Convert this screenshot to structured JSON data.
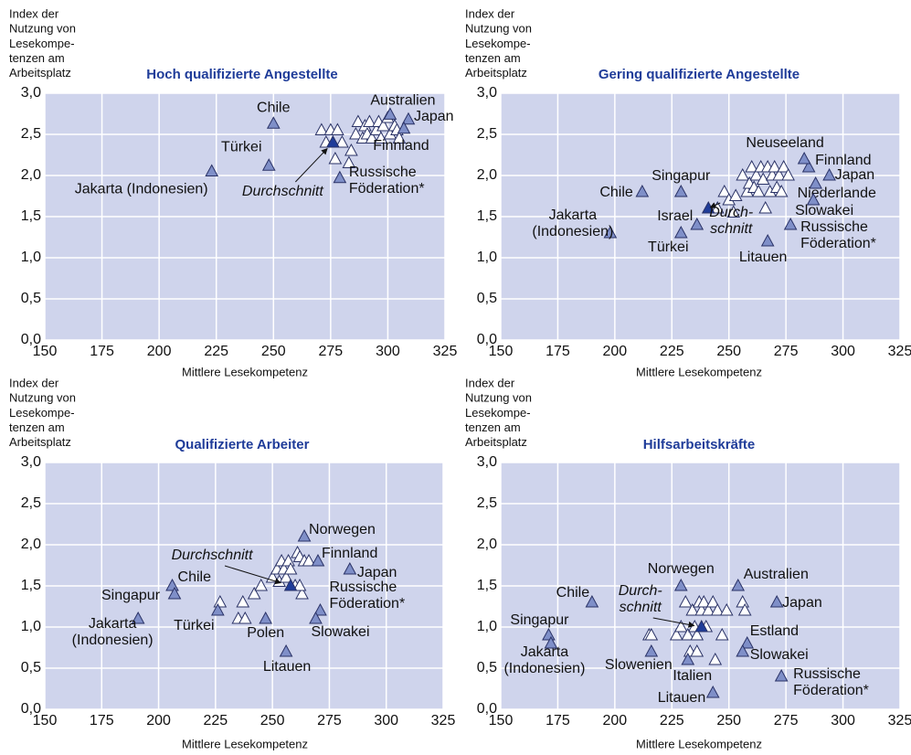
{
  "chart_data": [
    {
      "type": "scatter",
      "title": "Hoch qualifizierte Angestellte",
      "ylabel": [
        "Index der",
        "Nutzung von",
        "Lesekompe-",
        "tenzen am",
        "Arbeitsplatz"
      ],
      "xlabel": "Mittlere Lesekompetenz",
      "xlim": [
        150,
        325
      ],
      "xticks": [
        150,
        175,
        200,
        225,
        250,
        275,
        300,
        325
      ],
      "ylim": [
        0,
        3
      ],
      "yticks": [
        {
          "value": 0,
          "label": "0,0"
        },
        {
          "value": 0.5,
          "label": "0,5"
        },
        {
          "value": 1,
          "label": "1,0"
        },
        {
          "value": 1.5,
          "label": "1,5"
        },
        {
          "value": 2,
          "label": "2,0"
        },
        {
          "value": 2.5,
          "label": "2,5"
        },
        {
          "value": 3,
          "label": "3,0"
        }
      ],
      "grid": true,
      "series": [
        {
          "color": "#7f8fc8",
          "x": [
            250,
            248,
            223,
            301,
            309,
            307,
            279,
            276
          ],
          "values": [
            2.63,
            2.12,
            2.05,
            2.74,
            2.68,
            2.57,
            1.97,
            2.4
          ],
          "labels": [
            "Chile",
            "Türkei",
            "Jakarta (Indonesien)",
            "Australien",
            "Japan",
            "Finnland",
            [
              "Russische",
              "Föderation*"
            ]
          ]
        },
        {
          "color": "#ffffff",
          "x": [
            271,
            273,
            275,
            277,
            278,
            280,
            283,
            284,
            286,
            287,
            289,
            290,
            291,
            292,
            293,
            295,
            296,
            297,
            298,
            300,
            301,
            303,
            304,
            305
          ],
          "values": [
            2.55,
            2.4,
            2.55,
            2.2,
            2.55,
            2.4,
            2.15,
            2.3,
            2.5,
            2.65,
            2.45,
            2.6,
            2.5,
            2.65,
            2.45,
            2.55,
            2.65,
            2.45,
            2.6,
            2.7,
            2.5,
            2.6,
            2.55,
            2.45
          ]
        },
        {
          "color": "#1f3c99",
          "x": [
            276
          ],
          "values": [
            2.4
          ],
          "labels": [
            "Durchschnitt"
          ]
        }
      ]
    },
    {
      "type": "scatter",
      "title": "Gering qualifizierte Angestellte",
      "ylabel": [
        "Index der",
        "Nutzung von",
        "Lesekompe-",
        "tenzen am",
        "Arbeitsplatz"
      ],
      "xlabel": "Mittlere Lesekompetenz",
      "xlim": [
        150,
        325
      ],
      "xticks": [
        150,
        175,
        200,
        225,
        250,
        275,
        300,
        325
      ],
      "ylim": [
        0,
        3
      ],
      "yticks": [
        {
          "value": 0,
          "label": "0,0"
        },
        {
          "value": 0.5,
          "label": "0,5"
        },
        {
          "value": 1,
          "label": "1,0"
        },
        {
          "value": 1.5,
          "label": "1,5"
        },
        {
          "value": 2,
          "label": "2,0"
        },
        {
          "value": 2.5,
          "label": "2,5"
        },
        {
          "value": 3,
          "label": "3,0"
        }
      ],
      "grid": true,
      "series": [
        {
          "color": "#7f8fc8",
          "x": [
            285,
            294,
            283,
            288,
            287,
            277,
            267,
            229,
            212,
            236,
            229,
            198
          ],
          "values": [
            2.1,
            2.0,
            2.2,
            1.9,
            1.7,
            1.4,
            1.2,
            1.8,
            1.8,
            1.4,
            1.3,
            1.3
          ],
          "labels": [
            "Finnland",
            "Japan",
            "Neuseeland",
            "Niederlande",
            "Slowakei",
            [
              "Russische",
              "Föderation*"
            ],
            "Litauen",
            "Singapur",
            "Chile",
            "Israel",
            "Türkei",
            [
              "Jakarta",
              "(Indonesien)"
            ]
          ]
        },
        {
          "color": "#ffffff",
          "x": [
            245,
            248,
            250,
            252,
            253,
            256,
            258,
            259,
            260,
            261,
            262,
            263,
            264,
            265,
            266,
            267,
            268,
            269,
            270,
            271,
            272,
            273,
            274,
            276
          ],
          "values": [
            1.6,
            1.8,
            1.7,
            1.55,
            1.75,
            2.0,
            1.8,
            1.9,
            2.1,
            1.85,
            2.0,
            1.8,
            2.1,
            1.95,
            1.6,
            2.1,
            1.8,
            2.0,
            2.1,
            1.85,
            2.0,
            1.8,
            2.1,
            2.0
          ]
        },
        {
          "color": "#1f3c99",
          "x": [
            241
          ],
          "values": [
            1.6
          ],
          "labels": [
            [
              "Durch-",
              "schnitt"
            ]
          ]
        }
      ]
    },
    {
      "type": "scatter",
      "title": "Qualifizierte Arbeiter",
      "ylabel": [
        "Index der",
        "Nutzung von",
        "Lesekompe-",
        "tenzen am",
        "Arbeitsplatz"
      ],
      "xlabel": "Mittlere Lesekompetenz",
      "xlim": [
        150,
        325
      ],
      "xticks": [
        150,
        175,
        200,
        225,
        250,
        275,
        300,
        325
      ],
      "ylim": [
        0,
        3
      ],
      "yticks": [
        {
          "value": 0,
          "label": "0,0"
        },
        {
          "value": 0.5,
          "label": "0,5"
        },
        {
          "value": 1,
          "label": "1,0"
        },
        {
          "value": 1.5,
          "label": "1,5"
        },
        {
          "value": 2,
          "label": "2,0"
        },
        {
          "value": 2.5,
          "label": "2,5"
        },
        {
          "value": 3,
          "label": "3,0"
        }
      ],
      "grid": true,
      "series": [
        {
          "color": "#7f8fc8",
          "x": [
            264,
            270,
            284,
            271,
            269,
            247,
            256,
            206,
            207,
            191,
            226
          ],
          "values": [
            2.1,
            1.8,
            1.7,
            1.2,
            1.1,
            1.1,
            0.7,
            1.5,
            1.4,
            1.1,
            1.2
          ],
          "labels": [
            "Norwegen",
            "Finnland",
            "Japan",
            [
              "Russische",
              "Föderation*"
            ],
            "Slowakei",
            "Polen",
            "Litauen",
            "Chile",
            "Singapur",
            [
              "Jakarta",
              "(Indonesien)"
            ],
            "Türkei"
          ]
        },
        {
          "color": "#ffffff",
          "x": [
            227,
            235,
            237,
            238,
            242,
            245,
            250,
            252,
            253,
            254,
            255,
            256,
            257,
            258,
            260,
            261,
            262,
            263,
            264,
            266,
            262
          ],
          "values": [
            1.3,
            1.1,
            1.3,
            1.1,
            1.4,
            1.5,
            1.6,
            1.7,
            1.55,
            1.8,
            1.7,
            1.6,
            1.8,
            1.7,
            1.5,
            1.9,
            1.85,
            1.4,
            1.8,
            1.8,
            1.5
          ]
        },
        {
          "color": "#1f3c99",
          "x": [
            258
          ],
          "values": [
            1.5
          ],
          "labels": [
            "Durchschnitt"
          ]
        }
      ]
    },
    {
      "type": "scatter",
      "title": "Hilfsarbeitskräfte",
      "ylabel": [
        "Index der",
        "Nutzung von",
        "Lesekompe-",
        "tenzen am",
        "Arbeitsplatz"
      ],
      "xlabel": "Mittlere Lesekompetenz",
      "xlim": [
        150,
        325
      ],
      "xticks": [
        150,
        175,
        200,
        225,
        250,
        275,
        300,
        325
      ],
      "ylim": [
        0,
        3
      ],
      "yticks": [
        {
          "value": 0,
          "label": "0,0"
        },
        {
          "value": 0.5,
          "label": "0,5"
        },
        {
          "value": 1,
          "label": "1,0"
        },
        {
          "value": 1.5,
          "label": "1,5"
        },
        {
          "value": 2,
          "label": "2,0"
        },
        {
          "value": 2.5,
          "label": "2,5"
        },
        {
          "value": 3,
          "label": "3,0"
        }
      ],
      "grid": true,
      "series": [
        {
          "color": "#7f8fc8",
          "x": [
            190,
            171,
            172,
            229,
            254,
            271,
            258,
            256,
            273,
            243,
            216,
            232
          ],
          "values": [
            1.3,
            0.9,
            0.8,
            1.5,
            1.5,
            1.3,
            0.8,
            0.7,
            0.4,
            0.2,
            0.7,
            0.6
          ],
          "labels": [
            "Chile",
            "Singapur",
            [
              "Jakarta",
              "(Indonesien)"
            ],
            "Norwegen",
            "Australien",
            "Japan",
            "Estland",
            "Slowakei",
            [
              "Russische",
              "Föderation*"
            ],
            "Litauen",
            "Slowenien",
            "Italien"
          ]
        },
        {
          "color": "#ffffff",
          "x": [
            215,
            216,
            227,
            229,
            231,
            232,
            233,
            234,
            235,
            236,
            237,
            238,
            239,
            240,
            241,
            243,
            244,
            245,
            247,
            249,
            256,
            257,
            236
          ],
          "values": [
            0.9,
            0.9,
            0.9,
            1.0,
            1.3,
            0.9,
            0.7,
            1.2,
            1.0,
            0.9,
            1.3,
            1.2,
            1.3,
            1.0,
            1.2,
            1.3,
            0.6,
            1.2,
            0.9,
            1.2,
            1.3,
            1.2,
            0.7
          ]
        },
        {
          "color": "#1f3c99",
          "x": [
            238
          ],
          "values": [
            1.0
          ],
          "labels": [
            [
              "Durch-",
              "schnitt"
            ]
          ]
        }
      ]
    }
  ]
}
